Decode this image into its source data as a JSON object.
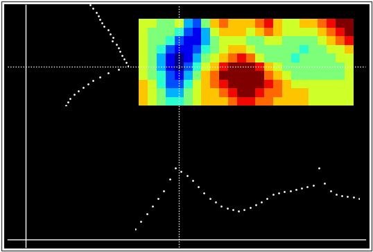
{
  "chart_data": [
    {
      "type": "heatmap",
      "tick_labels": false,
      "cells": [
        [
          6,
          6,
          5,
          5,
          6,
          3,
          2,
          5,
          7,
          8,
          7,
          7,
          7,
          8,
          9,
          7,
          6,
          6,
          7,
          7,
          8,
          9,
          10,
          10
        ],
        [
          6,
          5,
          5,
          5,
          4,
          2,
          1,
          3,
          6,
          7,
          7,
          7,
          6,
          7,
          8,
          7,
          6,
          6,
          6,
          6,
          7,
          8,
          9,
          10
        ],
        [
          6,
          5,
          5,
          4,
          2,
          1,
          1,
          3,
          5,
          6,
          6,
          6,
          5,
          5,
          6,
          6,
          5,
          5,
          5,
          5,
          6,
          7,
          8,
          9
        ],
        [
          6,
          5,
          4,
          2,
          1,
          1,
          2,
          4,
          5,
          6,
          7,
          7,
          6,
          5,
          5,
          5,
          5,
          5,
          4,
          5,
          5,
          6,
          6,
          7
        ],
        [
          6,
          5,
          3,
          1,
          0,
          1,
          3,
          5,
          6,
          7,
          8,
          9,
          8,
          6,
          5,
          5,
          5,
          4,
          5,
          5,
          5,
          5,
          6,
          6
        ],
        [
          6,
          5,
          3,
          1,
          0,
          2,
          4,
          6,
          7,
          9,
          10,
          10,
          10,
          9,
          7,
          6,
          5,
          5,
          5,
          5,
          5,
          5,
          5,
          6
        ],
        [
          6,
          5,
          4,
          2,
          1,
          3,
          5,
          7,
          8,
          10,
          10,
          10,
          10,
          10,
          8,
          7,
          6,
          5,
          5,
          5,
          5,
          5,
          5,
          6
        ],
        [
          7,
          6,
          4,
          2,
          2,
          4,
          6,
          7,
          8,
          9,
          10,
          10,
          10,
          10,
          9,
          8,
          7,
          6,
          6,
          6,
          6,
          6,
          6,
          6
        ],
        [
          7,
          6,
          5,
          3,
          3,
          5,
          6,
          7,
          7,
          8,
          9,
          10,
          10,
          9,
          8,
          8,
          7,
          7,
          7,
          6,
          6,
          6,
          6,
          6
        ],
        [
          7,
          6,
          5,
          4,
          4,
          5,
          6,
          7,
          7,
          7,
          8,
          9,
          9,
          8,
          8,
          7,
          7,
          7,
          7,
          6,
          6,
          6,
          6,
          6
        ]
      ],
      "crosshair": {
        "col": 4,
        "row": 5
      }
    },
    {
      "type": "line",
      "tick_labels": false,
      "marker": "dot",
      "line_style": "none",
      "color": "#ffffff",
      "xlim": [
        0,
        39
      ],
      "ylim": [
        0,
        100
      ],
      "values": [
        5,
        15,
        25,
        35,
        45,
        55,
        70,
        85,
        80,
        75,
        68,
        60,
        52,
        45,
        40,
        35,
        32,
        30,
        28,
        30,
        33,
        36,
        40,
        45,
        50,
        52,
        54,
        55,
        56,
        58,
        60,
        62,
        85,
        65,
        55,
        50,
        48,
        47,
        46,
        45
      ]
    },
    {
      "type": "line",
      "orientation": "horizontal",
      "tick_labels": false,
      "marker": "dot",
      "line_style": "none",
      "color": "#ffffff",
      "xlim": [
        0,
        100
      ],
      "ylim": [
        29,
        0
      ],
      "values": [
        60,
        62,
        65,
        68,
        70,
        72,
        74,
        76,
        80,
        82,
        85,
        84,
        88,
        90,
        92,
        94,
        96,
        98,
        100,
        90,
        80,
        72,
        65,
        60,
        55,
        50,
        46,
        42,
        40,
        38
      ]
    }
  ]
}
